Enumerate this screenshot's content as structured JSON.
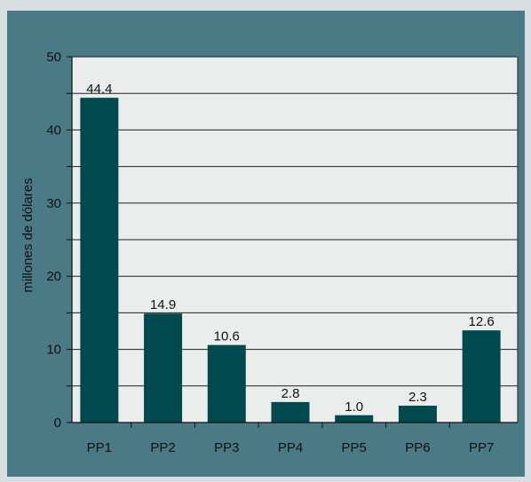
{
  "chart_data": {
    "type": "bar",
    "ylabel": "millones de dólares",
    "ylim": [
      0,
      50
    ],
    "categories": [
      "PP1",
      "PP2",
      "PP3",
      "PP4",
      "PP5",
      "PP6",
      "PP7"
    ],
    "values": [
      44.4,
      14.9,
      10.6,
      2.8,
      1.0,
      2.3,
      12.6
    ],
    "value_labels": [
      "44.4",
      "14.9",
      "10.6",
      "2.8",
      "1.0",
      "2.3",
      "12.6"
    ],
    "yticks": [
      0,
      10,
      20,
      30,
      40,
      50
    ],
    "grid": true,
    "colors": {
      "bar": "#004a4f",
      "plot_background": "#ebecec",
      "frame": "#4a7a85",
      "gridline": "#222222"
    }
  }
}
